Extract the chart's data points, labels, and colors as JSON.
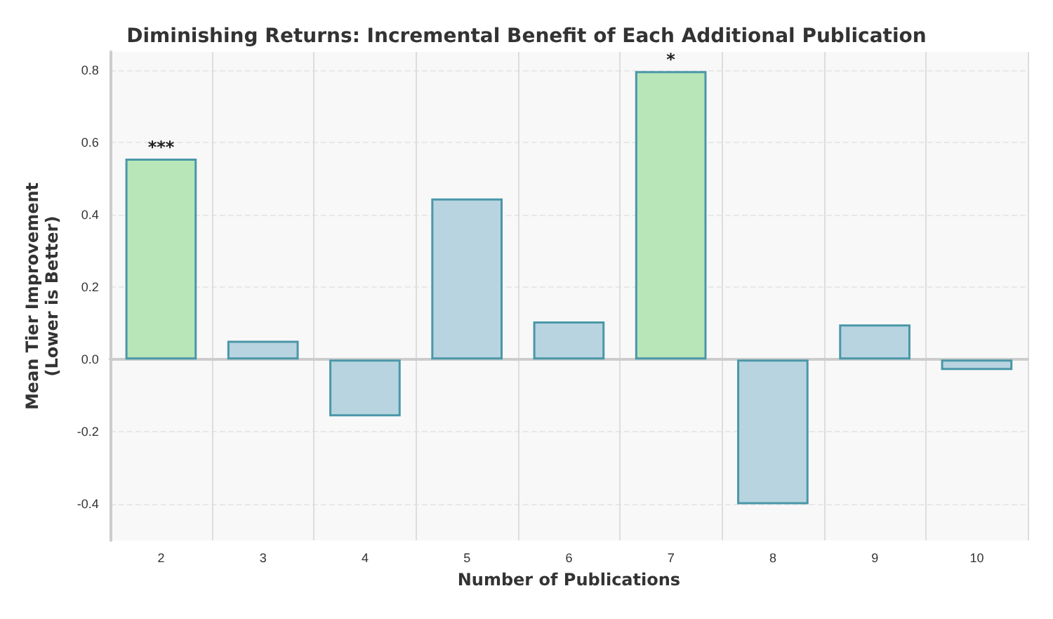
{
  "chart_data": {
    "type": "bar",
    "title": "Diminishing Returns: Incremental Benefit of Each Additional Publication",
    "xlabel": "Number of Publications",
    "ylabel": "Mean Tier Improvement\n(Lower is Better)",
    "categories": [
      "2",
      "3",
      "4",
      "5",
      "6",
      "7",
      "8",
      "9",
      "10"
    ],
    "values": [
      0.555,
      0.052,
      -0.157,
      0.445,
      0.105,
      0.797,
      -0.4,
      0.097,
      -0.029
    ],
    "colors": [
      "#b8e6b8",
      "#b8d4e0",
      "#b8d4e0",
      "#b8d4e0",
      "#b8d4e0",
      "#b8e6b8",
      "#b8d4e0",
      "#b8d4e0",
      "#b8d4e0"
    ],
    "ylim": [
      -0.5,
      0.85
    ],
    "yticks": [
      -0.4,
      -0.2,
      {
        "value": 0,
        "label": "0.0"
      },
      0.2,
      0.4,
      0.6,
      0.8
    ],
    "grid": true,
    "annotations": [
      {
        "text": "***",
        "x": "2",
        "y": 0.555
      },
      {
        "text": "*",
        "x": "7",
        "y": 0.797
      }
    ]
  }
}
